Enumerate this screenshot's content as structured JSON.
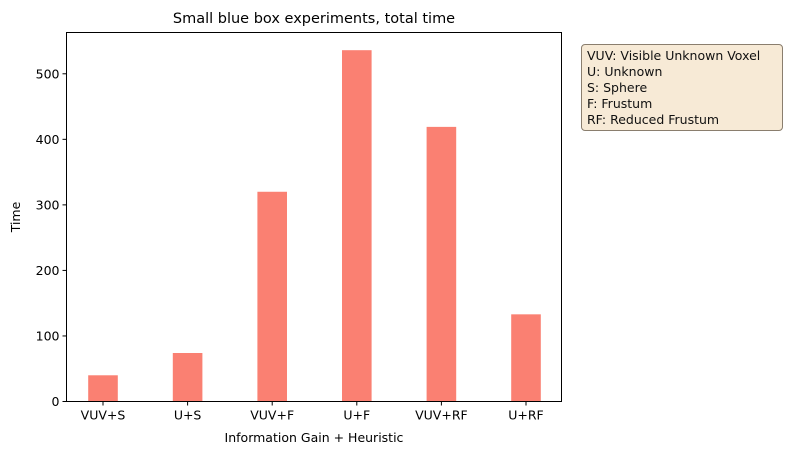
{
  "chart_data": {
    "type": "bar",
    "title": "Small blue box experiments, total time",
    "xlabel": "Information Gain + Heuristic",
    "ylabel": "Time",
    "categories": [
      "VUV+S",
      "U+S",
      "VUV+F",
      "U+F",
      "VUV+RF",
      "U+RF"
    ],
    "values": [
      40,
      74,
      320,
      536,
      419,
      133
    ],
    "ylim": [
      0,
      563
    ],
    "yticks": [
      0,
      100,
      200,
      300,
      400,
      500
    ],
    "bar_color": "#fa8072",
    "grid": false,
    "legend": "none",
    "annotation_placement": "right"
  },
  "annotation": {
    "lines": [
      "VUV: Visible Unknown Voxel",
      "U: Unknown",
      "S: Sphere",
      "F: Frustum",
      "RF: Reduced Frustum"
    ]
  }
}
